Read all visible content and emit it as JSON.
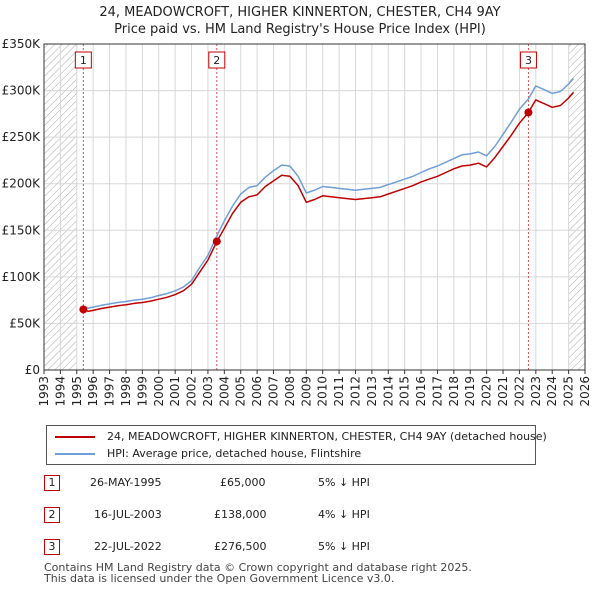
{
  "title_line1": "24, MEADOWCROFT, HIGHER KINNERTON, CHESTER, CH4 9AY",
  "title_line2": "Price paid vs. HM Land Registry's House Price Index (HPI)",
  "colors": {
    "price_line": "#c00000",
    "hpi_line": "#6f9fd8",
    "grid": "#d8d8d8",
    "hatch": "#aaaaaa",
    "marker_line": "#e05050"
  },
  "chart_data": {
    "type": "line",
    "title": "24, MEADOWCROFT, HIGHER KINNERTON, CHESTER, CH4 9AY",
    "subtitle": "Price paid vs. HM Land Registry's House Price Index (HPI)",
    "xlabel": "",
    "ylabel": "",
    "xlim": [
      1993.0,
      2026.0
    ],
    "ylim": [
      0,
      350000
    ],
    "yticks": [
      0,
      50000,
      100000,
      150000,
      200000,
      250000,
      300000,
      350000
    ],
    "ytick_labels": [
      "£0",
      "£50K",
      "£100K",
      "£150K",
      "£200K",
      "£250K",
      "£300K",
      "£350K"
    ],
    "xtick_labels": [
      "1993",
      "1994",
      "1995",
      "1996",
      "1997",
      "1998",
      "1999",
      "2000",
      "2001",
      "2002",
      "2003",
      "2004",
      "2005",
      "2006",
      "2007",
      "2008",
      "2009",
      "2010",
      "2011",
      "2012",
      "2013",
      "2014",
      "2015",
      "2016",
      "2017",
      "2018",
      "2019",
      "2020",
      "2021",
      "2022",
      "2023",
      "2024",
      "2025",
      "2026"
    ],
    "grid": true,
    "hatched_ranges": [
      [
        1993.0,
        1995.0
      ],
      [
        2025.0,
        2026.0
      ]
    ],
    "series": [
      {
        "name": "24, MEADOWCROFT, HIGHER KINNERTON, CHESTER, CH4 9AY (detached house)",
        "color": "#c00000",
        "x": [
          1995.4,
          1995.7,
          1996.0,
          1996.5,
          1997.0,
          1997.5,
          1998.0,
          1998.5,
          1999.0,
          1999.5,
          2000.0,
          2000.5,
          2001.0,
          2001.5,
          2002.0,
          2002.5,
          2003.0,
          2003.54,
          2004.0,
          2004.5,
          2005.0,
          2005.5,
          2006.0,
          2006.5,
          2007.0,
          2007.5,
          2008.0,
          2008.5,
          2009.0,
          2009.5,
          2010.0,
          2010.5,
          2011.0,
          2011.5,
          2012.0,
          2012.5,
          2013.0,
          2013.5,
          2014.0,
          2014.5,
          2015.0,
          2015.5,
          2016.0,
          2016.5,
          2017.0,
          2017.5,
          2018.0,
          2018.5,
          2019.0,
          2019.5,
          2020.0,
          2020.5,
          2021.0,
          2021.5,
          2022.0,
          2022.55,
          2023.0,
          2023.5,
          2024.0,
          2024.5,
          2025.0,
          2025.3
        ],
        "values": [
          65000,
          63000,
          64000,
          66000,
          67500,
          69000,
          70000,
          71500,
          72500,
          74000,
          76000,
          78000,
          81000,
          85000,
          92000,
          105000,
          118000,
          138000,
          152000,
          168000,
          180000,
          186000,
          188000,
          197000,
          203000,
          209000,
          208000,
          198000,
          180000,
          183000,
          187000,
          186000,
          185000,
          184000,
          183000,
          184000,
          185000,
          186000,
          189000,
          192000,
          195000,
          198000,
          202000,
          205000,
          208000,
          212000,
          216000,
          219000,
          220000,
          222000,
          218000,
          228000,
          240000,
          252000,
          265000,
          276500,
          290000,
          286000,
          282000,
          284000,
          292000,
          298000
        ]
      },
      {
        "name": "HPI: Average price, detached house, Flintshire",
        "color": "#6f9fd8",
        "x": [
          1995.4,
          1995.7,
          1996.0,
          1996.5,
          1997.0,
          1997.5,
          1998.0,
          1998.5,
          1999.0,
          1999.5,
          2000.0,
          2000.5,
          2001.0,
          2001.5,
          2002.0,
          2002.5,
          2003.0,
          2003.54,
          2004.0,
          2004.5,
          2005.0,
          2005.5,
          2006.0,
          2006.5,
          2007.0,
          2007.5,
          2008.0,
          2008.5,
          2009.0,
          2009.5,
          2010.0,
          2010.5,
          2011.0,
          2011.5,
          2012.0,
          2012.5,
          2013.0,
          2013.5,
          2014.0,
          2014.5,
          2015.0,
          2015.5,
          2016.0,
          2016.5,
          2017.0,
          2017.5,
          2018.0,
          2018.5,
          2019.0,
          2019.5,
          2020.0,
          2020.5,
          2021.0,
          2021.5,
          2022.0,
          2022.55,
          2023.0,
          2023.5,
          2024.0,
          2024.5,
          2025.0,
          2025.3
        ],
        "values": [
          68500,
          66500,
          67500,
          69500,
          71000,
          72500,
          73500,
          75000,
          76000,
          77500,
          80000,
          82000,
          85000,
          89000,
          96000,
          110000,
          123000,
          144000,
          160000,
          176000,
          189000,
          196000,
          198000,
          207000,
          214000,
          220000,
          219000,
          208000,
          190000,
          193000,
          197000,
          196000,
          195000,
          194000,
          193000,
          194000,
          195000,
          196000,
          199000,
          202000,
          205000,
          208000,
          212000,
          216000,
          219000,
          223000,
          227000,
          231000,
          232000,
          234000,
          230000,
          240000,
          253000,
          266000,
          280000,
          291000,
          305000,
          301000,
          297000,
          299000,
          307000,
          313000
        ]
      }
    ],
    "sales": [
      {
        "label": "1",
        "x": 1995.4,
        "value": 65000
      },
      {
        "label": "2",
        "x": 2003.54,
        "value": 138000
      },
      {
        "label": "3",
        "x": 2022.55,
        "value": 276500
      }
    ]
  },
  "legend": {
    "price_label": "24, MEADOWCROFT, HIGHER KINNERTON, CHESTER, CH4 9AY (detached house)",
    "hpi_label": "HPI: Average price, detached house, Flintshire"
  },
  "transactions": [
    {
      "num": "1",
      "date": "26-MAY-1995",
      "price": "£65,000",
      "hpi": "5% ↓ HPI"
    },
    {
      "num": "2",
      "date": "16-JUL-2003",
      "price": "£138,000",
      "hpi": "4% ↓ HPI"
    },
    {
      "num": "3",
      "date": "22-JUL-2022",
      "price": "£276,500",
      "hpi": "5% ↓ HPI"
    }
  ],
  "footer_line1": "Contains HM Land Registry data © Crown copyright and database right 2025.",
  "footer_line2": "This data is licensed under the Open Government Licence v3.0."
}
